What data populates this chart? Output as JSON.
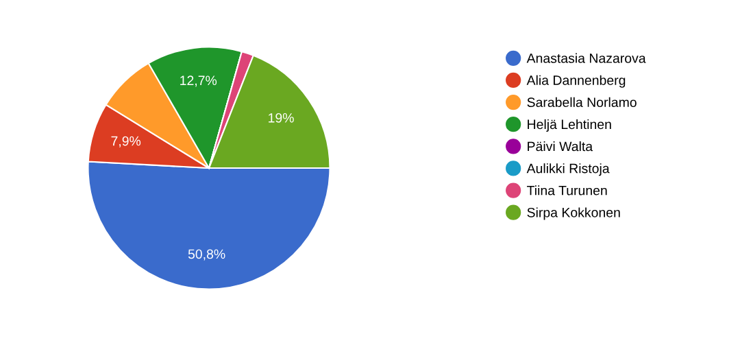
{
  "chart_data": {
    "type": "pie",
    "categories": [
      "Anastasia Nazarova",
      "Alia Dannenberg",
      "Sarabella Norlamo",
      "Heljä Lehtinen",
      "Päivi Walta",
      "Aulikki Ristoja",
      "Tiina Turunen",
      "Sirpa Kokkonen"
    ],
    "values": [
      50.8,
      7.9,
      7.9,
      12.7,
      0,
      0,
      1.6,
      19
    ],
    "colors": [
      "#3a6bcc",
      "#dc3d22",
      "#ff9a2a",
      "#1f962b",
      "#990099",
      "#1a9bc7",
      "#dd4477",
      "#6aa821"
    ],
    "value_labels": [
      "50,8%",
      "7,9%",
      null,
      "12,7%",
      null,
      null,
      null,
      "19%"
    ],
    "legend": "right"
  }
}
